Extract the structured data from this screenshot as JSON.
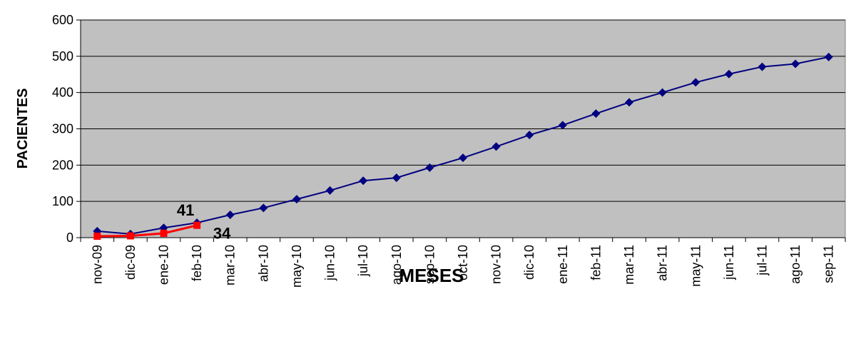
{
  "chart_data": {
    "type": "line",
    "xlabel": "MESES",
    "ylabel": "PACIENTES",
    "categories": [
      "nov-09",
      "dic-09",
      "ene-10",
      "feb-10",
      "mar-10",
      "abr-10",
      "may-10",
      "jun-10",
      "jul-10",
      "ago-10",
      "sep-10",
      "oct-10",
      "nov-10",
      "dic-10",
      "ene-11",
      "feb-11",
      "mar-11",
      "abr-11",
      "may-11",
      "jun-11",
      "jul-11",
      "ago-11",
      "sep-11"
    ],
    "series": [
      {
        "color": "#000080",
        "marker": "diamond",
        "values": [
          18,
          10,
          27,
          41,
          63,
          82,
          106,
          130,
          157,
          165,
          193,
          220,
          251,
          283,
          310,
          342,
          373,
          400,
          428,
          451,
          471,
          479,
          498
        ]
      },
      {
        "color": "#ff0000",
        "marker": "square",
        "values": [
          4,
          5,
          12,
          34,
          null,
          null,
          null,
          null,
          null,
          null,
          null,
          null,
          null,
          null,
          null,
          null,
          null,
          null,
          null,
          null,
          null,
          null,
          null
        ]
      }
    ],
    "ylim": [
      0,
      600
    ],
    "yticks": [
      0,
      100,
      200,
      300,
      400,
      500,
      600
    ],
    "grid": true
  }
}
